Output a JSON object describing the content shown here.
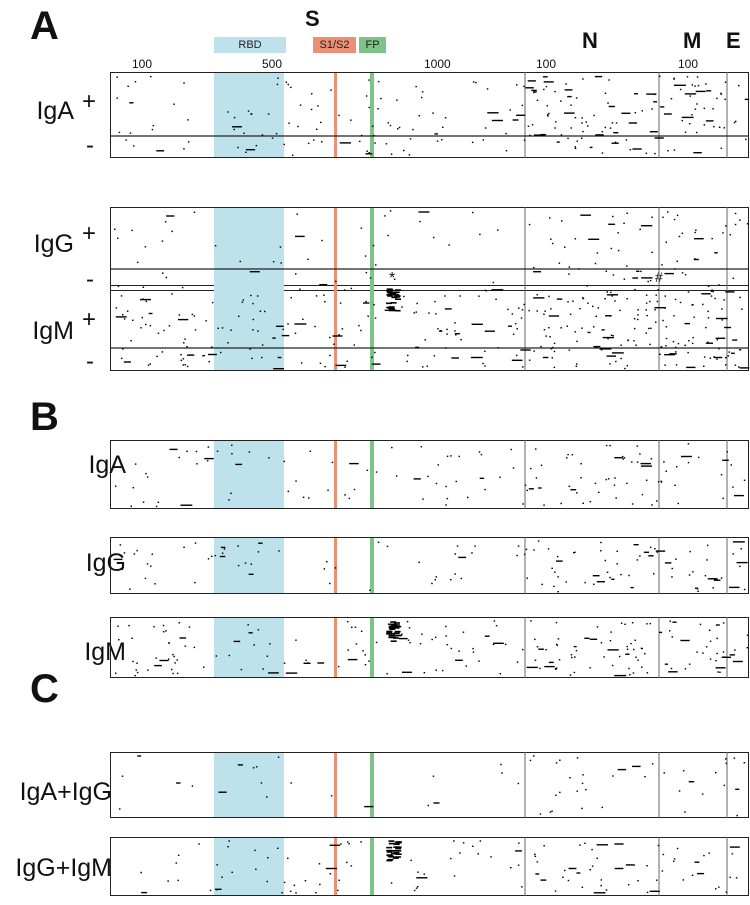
{
  "panels": {
    "a": "A",
    "b": "B",
    "c": "C"
  },
  "proteins": {
    "s": "S",
    "n": "N",
    "m": "M",
    "e": "E"
  },
  "annotations": {
    "rbd": {
      "label": "RBD",
      "color": "#bde2ec"
    },
    "s1s2": {
      "label": "S1/S2",
      "color": "#ec8f77"
    },
    "fp": {
      "label": "FP",
      "color": "#7fc28a"
    }
  },
  "axis_ticks": {
    "s_100": "100",
    "s_500": "500",
    "s_1000": "1000",
    "n_100": "100",
    "m_100": "100"
  },
  "panel_a": {
    "rows": [
      {
        "label": "IgA",
        "plus": "+",
        "minus": "-"
      },
      {
        "label": "IgG",
        "plus": "+",
        "minus": "-"
      },
      {
        "label": "IgM",
        "plus": "+",
        "minus": "-"
      }
    ],
    "markers": {
      "asterisk": "*",
      "hash": "#"
    }
  },
  "panel_b": {
    "rows": [
      "IgA",
      "IgG",
      "IgM"
    ]
  },
  "panel_c": {
    "rows": [
      "IgA+IgG",
      "IgG+IgM"
    ]
  },
  "colors": {
    "frame": "#222222",
    "dots": "#000000",
    "dividers": "#666666"
  }
}
